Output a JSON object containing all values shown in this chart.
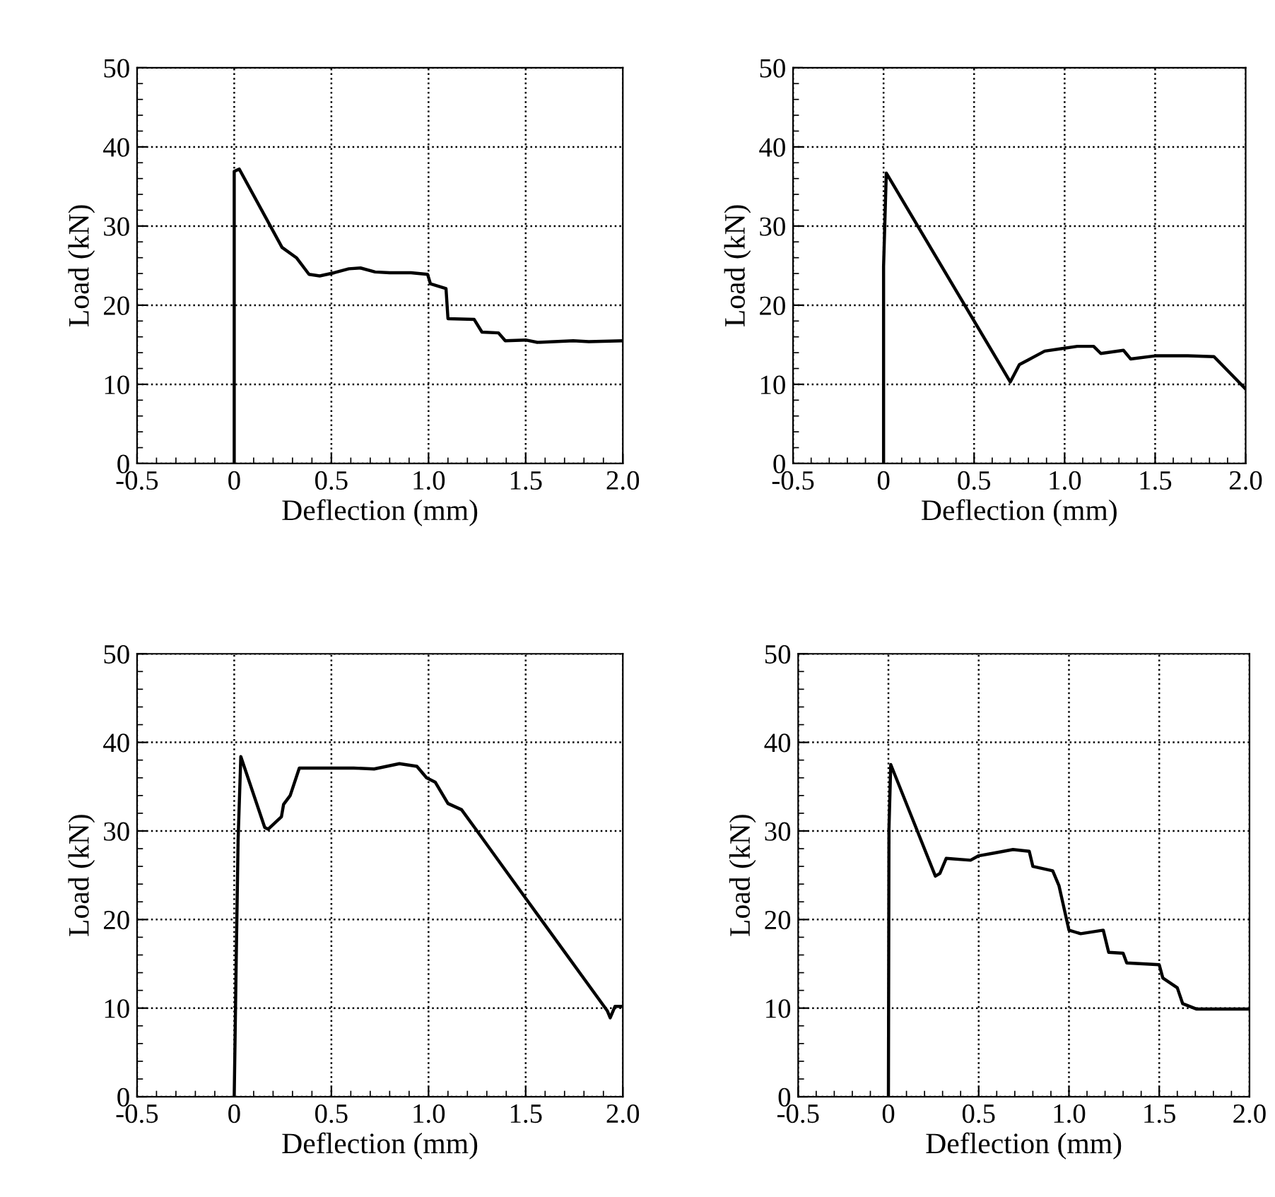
{
  "chart_data": [
    {
      "type": "line",
      "xlabel": "Deflection (mm)",
      "ylabel": "Load (kN)",
      "xlim": [
        -0.5,
        2.0
      ],
      "ylim": [
        0,
        50
      ],
      "xticks": [
        {
          "value": -0.5,
          "label": "-0.5"
        },
        0,
        0.5,
        {
          "value": 1.0,
          "label": "1.0"
        },
        1.5,
        {
          "value": 2.0,
          "label": "2.0"
        }
      ],
      "yticks": [
        0,
        10,
        20,
        30,
        40,
        50
      ],
      "grid": true,
      "line_style": "solid",
      "marker": "none",
      "series": [
        {
          "color": "#000000",
          "x": [
            0,
            0,
            0.026,
            0.246,
            0.32,
            0.385,
            0.44,
            0.515,
            0.59,
            0.65,
            0.725,
            0.8,
            0.91,
            0.995,
            1.01,
            1.09,
            1.1,
            1.235,
            1.275,
            1.36,
            1.395,
            1.5,
            1.56,
            1.745,
            1.825,
            2.0
          ],
          "values": [
            0,
            36.9,
            37.2,
            27.3,
            26.0,
            23.9,
            23.7,
            24.1,
            24.6,
            24.7,
            24.2,
            24.1,
            24.1,
            23.9,
            22.7,
            22.1,
            18.3,
            18.2,
            16.6,
            16.5,
            15.5,
            15.6,
            15.3,
            15.5,
            15.4,
            15.5
          ]
        }
      ]
    },
    {
      "type": "line",
      "xlabel": "Deflection (mm)",
      "ylabel": "Load (kN)",
      "xlim": [
        -0.5,
        2.0
      ],
      "ylim": [
        0,
        50
      ],
      "xticks": [
        {
          "value": -0.5,
          "label": "-0.5"
        },
        0,
        0.5,
        {
          "value": 1.0,
          "label": "1.0"
        },
        1.5,
        {
          "value": 2.0,
          "label": "2.0"
        }
      ],
      "yticks": [
        0,
        10,
        20,
        30,
        40,
        50
      ],
      "grid": true,
      "line_style": "solid",
      "marker": "none",
      "series": [
        {
          "color": "#000000",
          "x": [
            0,
            0,
            0.015,
            0.7,
            0.75,
            0.8,
            0.89,
            0.98,
            1.07,
            1.16,
            1.2,
            1.325,
            1.365,
            1.5,
            1.68,
            1.825,
            2.0
          ],
          "values": [
            0,
            24.9,
            36.7,
            10.3,
            12.5,
            13.1,
            14.2,
            14.5,
            14.8,
            14.8,
            13.9,
            14.3,
            13.2,
            13.6,
            13.6,
            13.5,
            9.4
          ]
        }
      ]
    },
    {
      "type": "line",
      "xlabel": "Deflection (mm)",
      "ylabel": "Load (kN)",
      "xlim": [
        -0.5,
        2.0
      ],
      "ylim": [
        0,
        50
      ],
      "xticks": [
        {
          "value": -0.5,
          "label": "-0.5"
        },
        0,
        0.5,
        {
          "value": 1.0,
          "label": "1.0"
        },
        1.5,
        {
          "value": 2.0,
          "label": "2.0"
        }
      ],
      "yticks": [
        0,
        10,
        20,
        30,
        40,
        50
      ],
      "grid": true,
      "line_style": "solid",
      "marker": "none",
      "series": [
        {
          "color": "#000000",
          "x": [
            0,
            0.01,
            0.02,
            0.034,
            0.157,
            0.175,
            0.243,
            0.254,
            0.288,
            0.335,
            0.615,
            0.72,
            0.85,
            0.94,
            0.99,
            1.035,
            1.1,
            1.17,
            1.24,
            1.5,
            1.92,
            1.935,
            1.96,
            2.0
          ],
          "values": [
            0,
            15,
            29,
            38.4,
            30.4,
            30.2,
            31.6,
            33.0,
            34.0,
            37.1,
            37.1,
            37.0,
            37.6,
            37.3,
            36.0,
            35.5,
            33.1,
            32.4,
            30.3,
            22.4,
            9.7,
            8.9,
            10.2,
            10.2
          ]
        }
      ]
    },
    {
      "type": "line",
      "xlabel": "Deflection (mm)",
      "ylabel": "Load (kN)",
      "xlim": [
        -0.5,
        2.0
      ],
      "ylim": [
        0,
        50
      ],
      "xticks": [
        {
          "value": -0.5,
          "label": "-0.5"
        },
        0,
        0.5,
        {
          "value": 1.0,
          "label": "1.0"
        },
        1.5,
        {
          "value": 2.0,
          "label": "2.0"
        }
      ],
      "yticks": [
        0,
        10,
        20,
        30,
        40,
        50
      ],
      "grid": true,
      "line_style": "solid",
      "marker": "none",
      "series": [
        {
          "color": "#000000",
          "x": [
            0,
            0.003,
            0.013,
            0.26,
            0.285,
            0.32,
            0.455,
            0.5,
            0.585,
            0.69,
            0.78,
            0.8,
            0.91,
            0.945,
            1.0,
            1.065,
            1.19,
            1.22,
            1.3,
            1.32,
            1.5,
            1.52,
            1.6,
            1.63,
            1.705,
            2.0
          ],
          "values": [
            0,
            30.2,
            37.5,
            24.9,
            25.2,
            26.9,
            26.7,
            27.2,
            27.5,
            27.9,
            27.7,
            26.0,
            25.5,
            23.8,
            18.8,
            18.4,
            18.8,
            16.3,
            16.2,
            15.1,
            14.9,
            13.4,
            12.3,
            10.5,
            9.9,
            9.9
          ]
        }
      ]
    }
  ]
}
